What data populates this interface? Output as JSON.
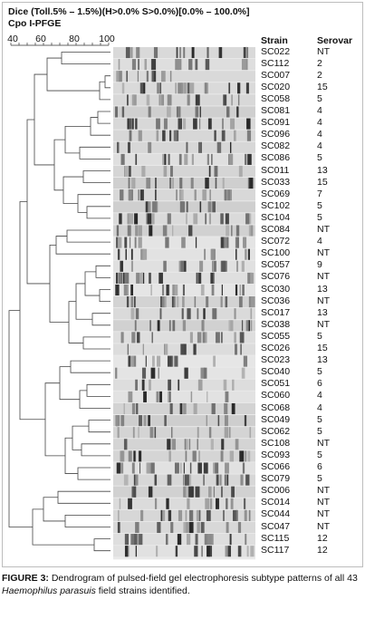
{
  "header": {
    "line1": "Dice (Toll.5% – 1.5%)(H>0.0% S>0.0%)[0.0% – 100.0%]",
    "line2": "Cpo I-PFGE"
  },
  "scale": {
    "ticks": [
      "40",
      "60",
      "80",
      "100"
    ]
  },
  "columns": {
    "strain": "Strain",
    "serovar": "Serovar"
  },
  "rows": [
    {
      "strain": "SC022",
      "serovar": "NT"
    },
    {
      "strain": "SC112",
      "serovar": "2"
    },
    {
      "strain": "SC007",
      "serovar": "2"
    },
    {
      "strain": "SC020",
      "serovar": "15"
    },
    {
      "strain": "SC058",
      "serovar": "5"
    },
    {
      "strain": "SC081",
      "serovar": "4"
    },
    {
      "strain": "SC091",
      "serovar": "4"
    },
    {
      "strain": "SC096",
      "serovar": "4"
    },
    {
      "strain": "SC082",
      "serovar": "4"
    },
    {
      "strain": "SC086",
      "serovar": "5"
    },
    {
      "strain": "SC011",
      "serovar": "13"
    },
    {
      "strain": "SC033",
      "serovar": "15"
    },
    {
      "strain": "SC069",
      "serovar": "7"
    },
    {
      "strain": "SC102",
      "serovar": "5"
    },
    {
      "strain": "SC104",
      "serovar": "5"
    },
    {
      "strain": "SC084",
      "serovar": "NT"
    },
    {
      "strain": "SC072",
      "serovar": "4"
    },
    {
      "strain": "SC100",
      "serovar": "NT"
    },
    {
      "strain": "SC057",
      "serovar": "9"
    },
    {
      "strain": "SC076",
      "serovar": "NT"
    },
    {
      "strain": "SC030",
      "serovar": "13"
    },
    {
      "strain": "SC036",
      "serovar": "NT"
    },
    {
      "strain": "SC017",
      "serovar": "13"
    },
    {
      "strain": "SC038",
      "serovar": "NT"
    },
    {
      "strain": "SC055",
      "serovar": "5"
    },
    {
      "strain": "SC026",
      "serovar": "15"
    },
    {
      "strain": "SC023",
      "serovar": "13"
    },
    {
      "strain": "SC040",
      "serovar": "5"
    },
    {
      "strain": "SC051",
      "serovar": "6"
    },
    {
      "strain": "SC060",
      "serovar": "4"
    },
    {
      "strain": "SC068",
      "serovar": "4"
    },
    {
      "strain": "SC049",
      "serovar": "5"
    },
    {
      "strain": "SC062",
      "serovar": "5"
    },
    {
      "strain": "SC108",
      "serovar": "NT"
    },
    {
      "strain": "SC093",
      "serovar": "5"
    },
    {
      "strain": "SC066",
      "serovar": "6"
    },
    {
      "strain": "SC079",
      "serovar": "5"
    },
    {
      "strain": "SC006",
      "serovar": "NT"
    },
    {
      "strain": "SC014",
      "serovar": "NT"
    },
    {
      "strain": "SC044",
      "serovar": "NT"
    },
    {
      "strain": "SC047",
      "serovar": "NT"
    },
    {
      "strain": "SC115",
      "serovar": "12"
    },
    {
      "strain": "SC117",
      "serovar": "12"
    }
  ],
  "caption": {
    "label": "FIGURE 3:",
    "text_before": " Dendrogram of pulsed-field gel electrophoresis subtype patterns of all 43 ",
    "organism": "Haemophilus parasuis",
    "text_after": " field strains identified."
  }
}
